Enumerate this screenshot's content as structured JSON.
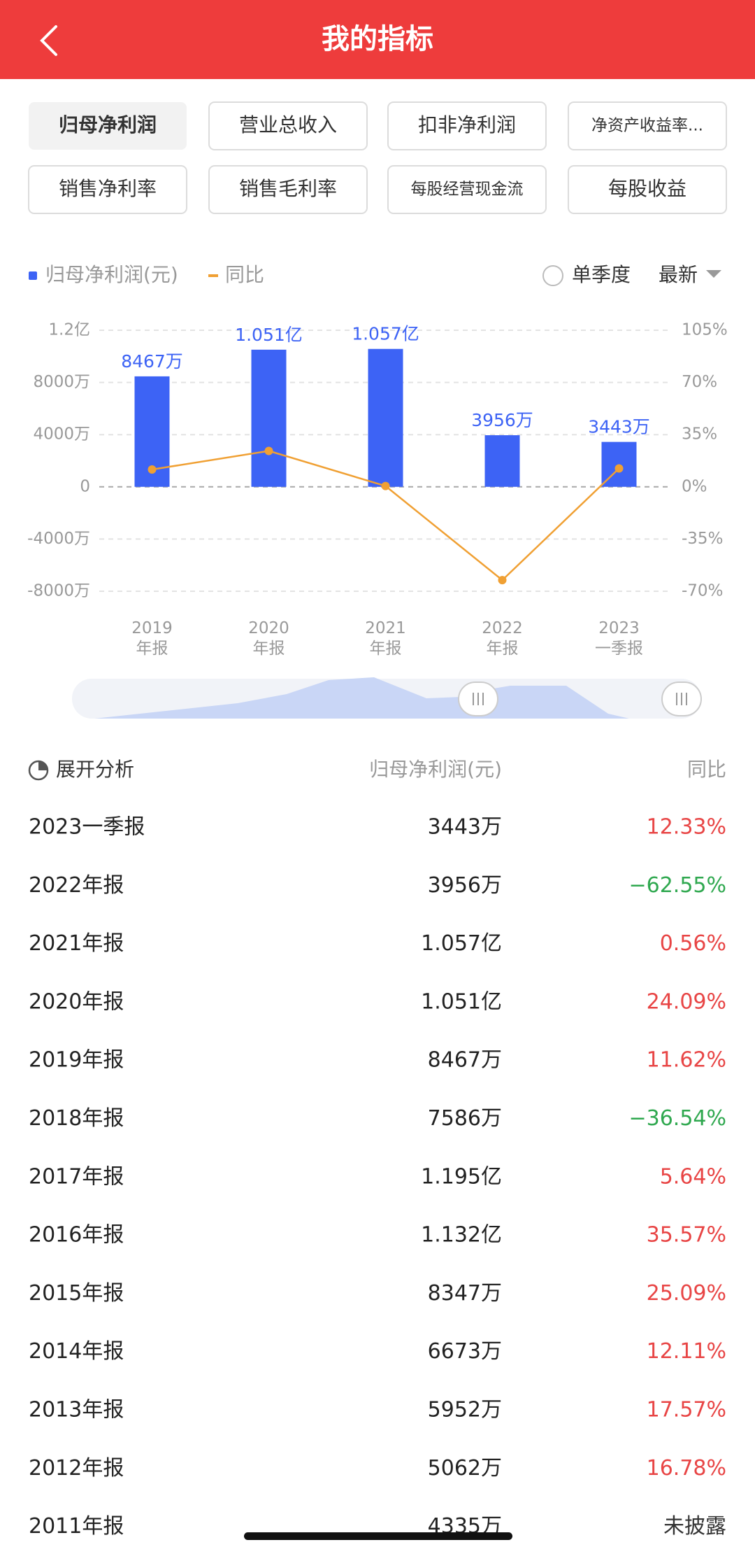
{
  "header": {
    "title": "我的指标"
  },
  "tabs": [
    "归母净利润",
    "营业总收入",
    "扣非净利润",
    "净资产收益率...",
    "销售净利率",
    "销售毛利率",
    "每股经营现金流",
    "每股收益"
  ],
  "controls": {
    "quarter": "单季度",
    "sort": "最新"
  },
  "chart_data": {
    "type": "bar",
    "categories": [
      "2019\n年报",
      "2020\n年报",
      "2021\n年报",
      "2022\n年报",
      "2023\n一季报"
    ],
    "series": [
      {
        "name": "归母净利润(元)",
        "color": "#3d63f5",
        "values": [
          84670000,
          105100000,
          105700000,
          39560000,
          34430000
        ],
        "value_labels": [
          "8467万",
          "1.051亿",
          "1.057亿",
          "3956万",
          "3443万"
        ]
      },
      {
        "name": "同比",
        "type": "line",
        "color": "#f0a033",
        "axis": "y2",
        "values": [
          11.62,
          24.09,
          0.56,
          -62.55,
          12.33
        ]
      }
    ],
    "ylim": [
      -80000000,
      120000000
    ],
    "yticks": [
      {
        "value": -80000000,
        "label": "-8000万"
      },
      {
        "value": -40000000,
        "label": "-4000万"
      },
      0,
      {
        "value": 40000000,
        "label": "4000万"
      },
      {
        "value": 80000000,
        "label": "8000万"
      },
      {
        "value": 120000000,
        "label": "1.2亿"
      }
    ],
    "y2lim": [
      -70,
      105
    ],
    "y2ticks": [
      {
        "value": -70,
        "label": "-70%"
      },
      {
        "value": -35,
        "label": "-35%"
      },
      {
        "value": 0,
        "label": "0%"
      },
      {
        "value": 35,
        "label": "35%"
      },
      {
        "value": 70,
        "label": "70%"
      },
      {
        "value": 105,
        "label": "105%"
      }
    ],
    "grid": true
  },
  "table": {
    "header": [
      "展开分析",
      "归母净利润(元)",
      "同比"
    ],
    "rows": [
      [
        "2023一季报",
        "3443万",
        "12.33%"
      ],
      [
        "2022年报",
        "3956万",
        "−62.55%"
      ],
      [
        "2021年报",
        "1.057亿",
        "0.56%"
      ],
      [
        "2020年报",
        "1.051亿",
        "24.09%"
      ],
      [
        "2019年报",
        "8467万",
        "11.62%"
      ],
      [
        "2018年报",
        "7586万",
        "−36.54%"
      ],
      [
        "2017年报",
        "1.195亿",
        "5.64%"
      ],
      [
        "2016年报",
        "1.132亿",
        "35.57%"
      ],
      [
        "2015年报",
        "8347万",
        "25.09%"
      ],
      [
        "2014年报",
        "6673万",
        "12.11%"
      ],
      [
        "2013年报",
        "5952万",
        "17.57%"
      ],
      [
        "2012年报",
        "5062万",
        "16.78%"
      ],
      [
        "2011年报",
        "4335万",
        "未披露"
      ]
    ]
  }
}
